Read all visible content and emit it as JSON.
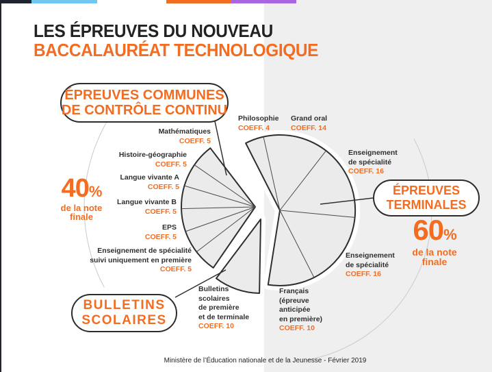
{
  "theme": {
    "accent": "#f26d21",
    "text_dark": "#222222",
    "panel_gray": "#efefef",
    "pie_fill": "#ebebeb",
    "outline_dark": "#2e2e2e",
    "bar_black": "#20242e",
    "bar_blue": "#70c7f1",
    "bar_orange": "#f26d21",
    "bar_purple": "#aa65e2"
  },
  "title": {
    "line1": "LES ÉPREUVES DU NOUVEAU",
    "line2": "BACCALAURÉAT TECHNOLOGIQUE"
  },
  "pills": {
    "continu": {
      "line1": "ÉPREUVES COMMUNES",
      "line2": "DE CONTRÔLE CONTINU"
    },
    "terminales": {
      "line1": "ÉPREUVES",
      "line2": "TERMINALES"
    },
    "bulletins": {
      "line1": "BULLETINS",
      "line2": "SCOLAIRES"
    }
  },
  "share_left": {
    "value": "40",
    "percent_sign": "%",
    "caption1": "de la note",
    "caption2": "finale"
  },
  "share_right": {
    "value": "60",
    "percent_sign": "%",
    "caption1": "de la note",
    "caption2": "finale"
  },
  "footer": "Ministère de l’Éducation nationale et de la Jeunesse - Février 2019",
  "callouts": [
    {
      "id": "mathematiques",
      "lines": [
        "Mathématiques"
      ],
      "coeff": "COEFF. 5"
    },
    {
      "id": "histoire-geo",
      "lines": [
        "Histoire-géographie"
      ],
      "coeff": "COEFF. 5"
    },
    {
      "id": "langue-vivante-a",
      "lines": [
        "Langue vivante A"
      ],
      "coeff": "COEFF. 5"
    },
    {
      "id": "langue-vivante-b",
      "lines": [
        "Langue vivante B"
      ],
      "coeff": "COEFF. 5"
    },
    {
      "id": "eps",
      "lines": [
        "EPS"
      ],
      "coeff": "COEFF. 5"
    },
    {
      "id": "spe-premiere",
      "lines": [
        "Enseignement de spécialité",
        "suivi uniquement en première"
      ],
      "coeff": "COEFF. 5"
    },
    {
      "id": "philosophie",
      "lines": [
        "Philosophie"
      ],
      "coeff": "COEFF. 4"
    },
    {
      "id": "grand-oral",
      "lines": [
        "Grand oral"
      ],
      "coeff": "COEFF. 14"
    },
    {
      "id": "spe-terminale-1",
      "lines": [
        "Enseignement",
        "de spécialité"
      ],
      "coeff": "COEFF. 16"
    },
    {
      "id": "spe-terminale-2",
      "lines": [
        "Enseignement",
        "de spécialité"
      ],
      "coeff": "COEFF. 16"
    },
    {
      "id": "francais",
      "lines": [
        "Français",
        "(épreuve",
        "anticipée",
        "en première)"
      ],
      "coeff": "COEFF. 10"
    },
    {
      "id": "bulletins",
      "lines": [
        "Bulletins",
        "scolaires",
        "de première",
        "et de terminale"
      ],
      "coeff": "COEFF. 10"
    }
  ],
  "chart_data": {
    "type": "pie",
    "title": "Les épreuves du nouveau baccalauréat technologique",
    "value_unit": "coefficient",
    "total_coefficients": 100,
    "groups": [
      {
        "name": "Épreuves communes de contrôle continu",
        "share_of_final_grade_pct": 40,
        "slices": [
          {
            "label": "Mathématiques",
            "coeff": 5
          },
          {
            "label": "Histoire-géographie",
            "coeff": 5
          },
          {
            "label": "Langue vivante A",
            "coeff": 5
          },
          {
            "label": "Langue vivante B",
            "coeff": 5
          },
          {
            "label": "EPS",
            "coeff": 5
          },
          {
            "label": "Enseignement de spécialité suivi uniquement en première",
            "coeff": 5
          },
          {
            "label": "Bulletins scolaires de première et de terminale",
            "coeff": 10
          }
        ]
      },
      {
        "name": "Épreuves terminales",
        "share_of_final_grade_pct": 60,
        "slices": [
          {
            "label": "Philosophie",
            "coeff": 4
          },
          {
            "label": "Grand oral",
            "coeff": 14
          },
          {
            "label": "Enseignement de spécialité",
            "coeff": 16
          },
          {
            "label": "Enseignement de spécialité",
            "coeff": 16
          },
          {
            "label": "Français (épreuve anticipée en première)",
            "coeff": 10
          }
        ]
      }
    ]
  }
}
